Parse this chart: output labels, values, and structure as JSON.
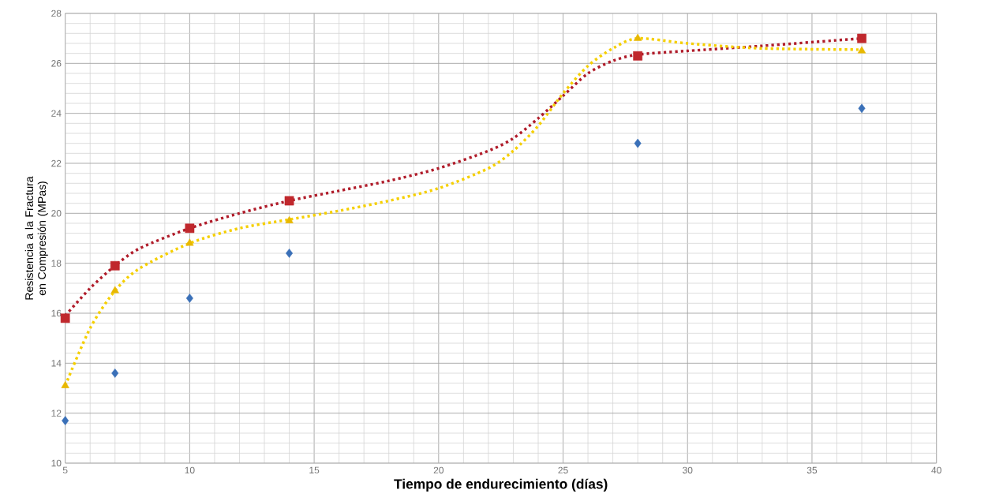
{
  "chart_data": {
    "type": "scatter",
    "xlabel": "Tiempo de endurecimiento (días)",
    "ylabel": "Resistencia a la Fractura en Compresión (MPas)",
    "x": [
      5,
      7,
      10,
      14,
      28,
      37
    ],
    "series": [
      {
        "color": "#3a70b8",
        "marker": "diamond",
        "values": [
          11.7,
          13.6,
          16.6,
          18.4,
          22.8,
          24.2
        ]
      },
      {
        "color": "#c0282d",
        "marker": "square",
        "values": [
          15.8,
          17.9,
          19.4,
          20.5,
          26.3,
          27.0
        ]
      },
      {
        "color": "#e8b800",
        "marker": "triangle",
        "values": [
          13.1,
          16.9,
          18.8,
          19.7,
          27.0,
          26.5
        ]
      },
      {
        "type": "line",
        "color": "#b01c2a",
        "line_style": "dotted",
        "x": [
          5,
          6,
          7,
          8,
          10,
          12,
          14,
          16,
          18,
          20,
          22,
          23,
          24,
          25,
          26,
          27,
          28,
          30,
          33,
          37
        ],
        "values": [
          15.9,
          17.0,
          17.9,
          18.6,
          19.4,
          20.0,
          20.5,
          20.9,
          21.3,
          21.8,
          22.5,
          23.0,
          23.8,
          24.7,
          25.6,
          26.1,
          26.35,
          26.5,
          26.7,
          27.0
        ]
      },
      {
        "type": "line",
        "color": "#f5cf00",
        "line_style": "dotted",
        "x": [
          5,
          6,
          7,
          8,
          10,
          12,
          14,
          16,
          18,
          20,
          22,
          23,
          24,
          25,
          26,
          27,
          28,
          30,
          33,
          37
        ],
        "values": [
          13.1,
          15.4,
          16.9,
          17.8,
          18.8,
          19.4,
          19.75,
          20.1,
          20.5,
          21.0,
          21.8,
          22.5,
          23.5,
          24.8,
          25.9,
          26.6,
          27.0,
          26.8,
          26.6,
          26.55
        ]
      }
    ],
    "xlim": [
      5,
      40
    ],
    "ylim": [
      10,
      28
    ],
    "xticks": [
      5,
      10,
      15,
      20,
      25,
      30,
      35,
      40
    ],
    "yticks": [
      10,
      12,
      14,
      16,
      18,
      20,
      22,
      24,
      26,
      28
    ],
    "grid": true
  }
}
